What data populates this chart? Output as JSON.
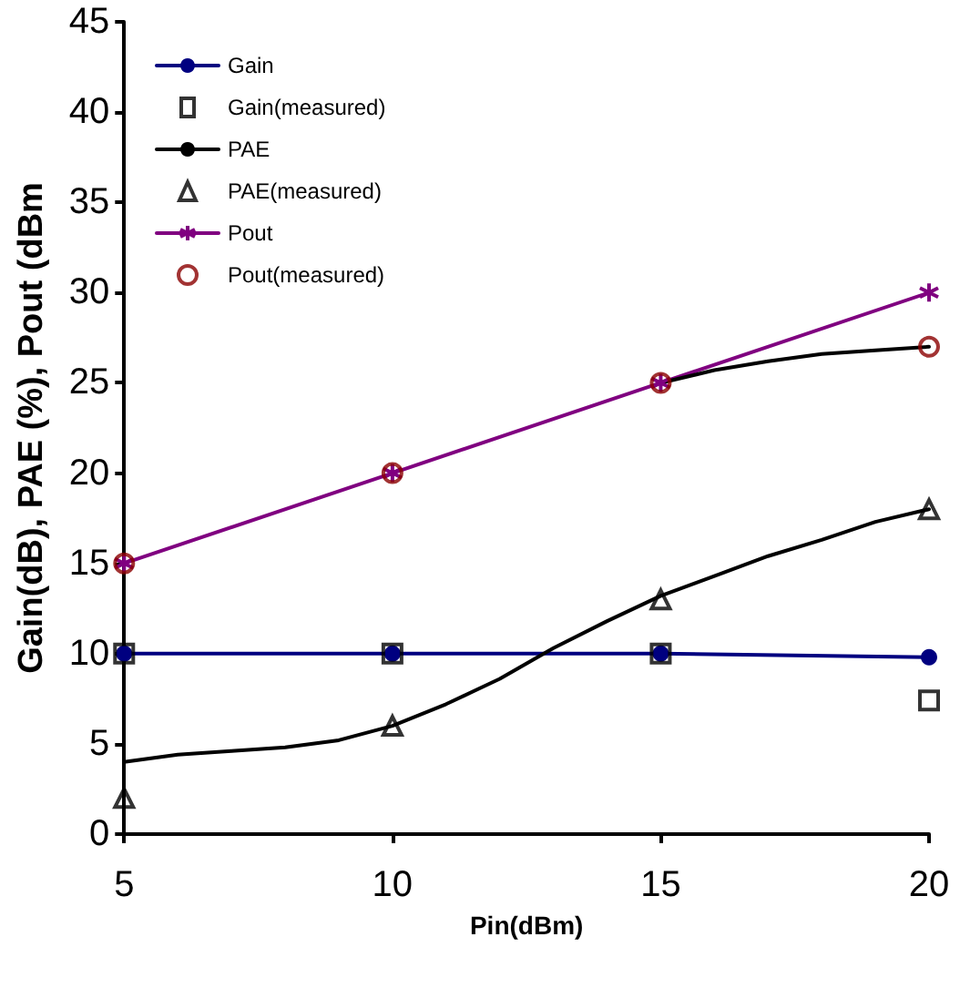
{
  "chart_data": {
    "type": "line",
    "xlabel": "Pin(dBm)",
    "ylabel": "Gain(dB), PAE (%), Pout (dBm",
    "x": [
      5,
      10,
      15,
      20
    ],
    "xlim": [
      5,
      20
    ],
    "xticks": [
      5,
      10,
      15,
      20
    ],
    "ylim": [
      0,
      45
    ],
    "yticks": [
      0,
      5,
      10,
      15,
      20,
      25,
      30,
      35,
      40,
      45
    ],
    "grid": false,
    "legend": "top left",
    "line_style": "solid",
    "series": [
      {
        "name": "Gain",
        "marker": "circle",
        "color": "#000080",
        "values": [
          10.0,
          10.0,
          10.0,
          9.8
        ]
      },
      {
        "name": "Gain(measured)",
        "type": "scatter",
        "marker": "square",
        "color": "#000000",
        "values": [
          10.0,
          10.0,
          10.0,
          7.4
        ]
      },
      {
        "name": "PAE",
        "marker": "none",
        "color": "#000000",
        "x": [
          5,
          6,
          7,
          8,
          9,
          10,
          11,
          12,
          13,
          14,
          15,
          16,
          17,
          18,
          19,
          20
        ],
        "values": [
          4.0,
          4.4,
          4.6,
          4.8,
          5.2,
          6.0,
          7.2,
          8.6,
          10.3,
          11.8,
          13.2,
          14.3,
          15.4,
          16.3,
          17.3,
          18.0
        ]
      },
      {
        "name": "PAE(measured)",
        "type": "scatter",
        "marker": "triangle",
        "color": "#000000",
        "values": [
          2,
          6,
          13,
          18
        ]
      },
      {
        "name": "Pout",
        "marker": "cross",
        "color": "#800080",
        "values": [
          15,
          20,
          25,
          30
        ]
      },
      {
        "name": "Pout(measured)",
        "type": "scatter",
        "marker": "circle",
        "color": "#8b0000",
        "values": [
          15,
          20,
          25,
          27
        ]
      },
      {
        "marker": "none",
        "color": "#000000",
        "x": [
          15,
          16,
          17,
          18,
          19,
          20
        ],
        "values": [
          25,
          25.7,
          26.2,
          26.6,
          26.8,
          27
        ]
      }
    ]
  }
}
